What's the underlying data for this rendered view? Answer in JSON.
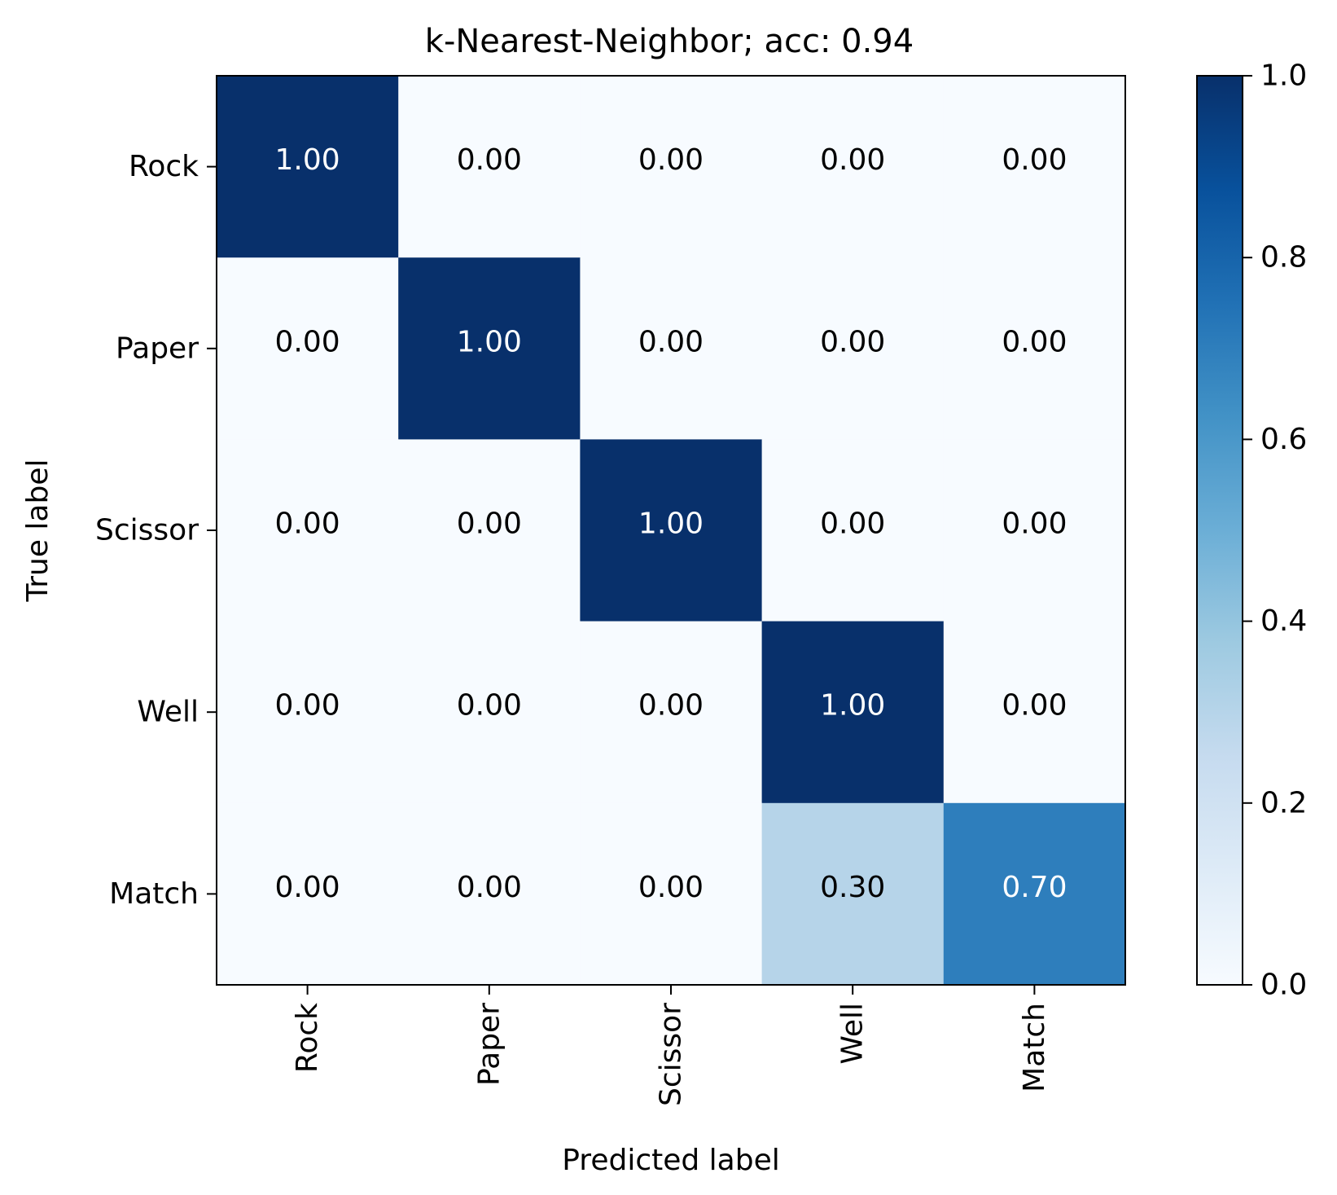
{
  "chart_data": {
    "type": "heatmap",
    "title": "k-Nearest-Neighbor; acc: 0.94",
    "xlabel": "Predicted label",
    "ylabel": "True label",
    "x_categories": [
      "Rock",
      "Paper",
      "Scissor",
      "Well",
      "Match"
    ],
    "y_categories": [
      "Rock",
      "Paper",
      "Scissor",
      "Well",
      "Match"
    ],
    "values": [
      [
        1.0,
        0.0,
        0.0,
        0.0,
        0.0
      ],
      [
        0.0,
        1.0,
        0.0,
        0.0,
        0.0
      ],
      [
        0.0,
        0.0,
        1.0,
        0.0,
        0.0
      ],
      [
        0.0,
        0.0,
        0.0,
        1.0,
        0.0
      ],
      [
        0.0,
        0.0,
        0.0,
        0.3,
        0.7
      ]
    ],
    "cell_labels": [
      [
        "1.00",
        "0.00",
        "0.00",
        "0.00",
        "0.00"
      ],
      [
        "0.00",
        "1.00",
        "0.00",
        "0.00",
        "0.00"
      ],
      [
        "0.00",
        "0.00",
        "1.00",
        "0.00",
        "0.00"
      ],
      [
        "0.00",
        "0.00",
        "0.00",
        "1.00",
        "0.00"
      ],
      [
        "0.00",
        "0.00",
        "0.00",
        "0.30",
        "0.70"
      ]
    ],
    "colormap": "Blues",
    "colorbar": {
      "range": [
        0.0,
        1.0
      ],
      "ticks": [
        0.0,
        0.2,
        0.4,
        0.6,
        0.8,
        1.0
      ],
      "tick_labels": [
        "0.0",
        "0.2",
        "0.4",
        "0.6",
        "0.8",
        "1.0"
      ]
    },
    "text_colors": {
      "light_cell": "#000000",
      "dark_cell": "#ffffff"
    },
    "grid": false
  }
}
